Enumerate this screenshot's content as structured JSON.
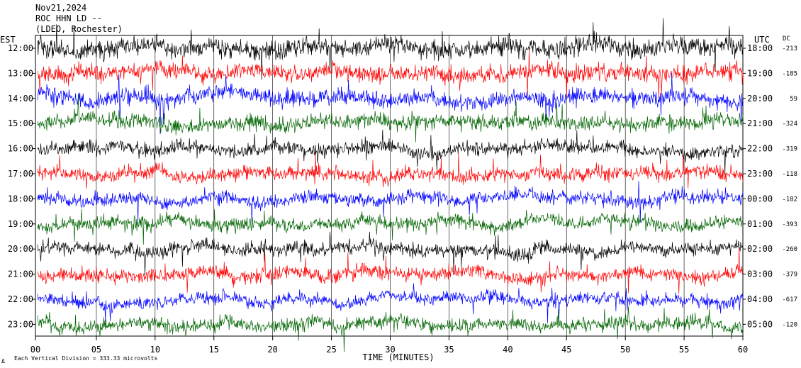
{
  "header": {
    "date": "Nov21,2024",
    "station": "ROC HHN LD --",
    "location": "(LDEO, Rochester)"
  },
  "footer": {
    "scale_note": "Each Vertical Division =  333.33 microvolts",
    "logo_mark": "Δ"
  },
  "colors": {
    "black": "#000000",
    "red": "#ff0000",
    "blue": "#0000ff",
    "green": "#006400"
  },
  "chart_data": {
    "type": "line",
    "xlabel": "TIME (MINUTES)",
    "xlim": [
      0,
      60
    ],
    "x_ticks": [
      "00",
      "05",
      "10",
      "15",
      "20",
      "25",
      "30",
      "35",
      "40",
      "45",
      "50",
      "55",
      "60"
    ],
    "left_axis_title": "EST",
    "right_axis_title": "UTC",
    "dc_title": "DC",
    "rows": [
      {
        "est": "12:00",
        "utc": "18:00",
        "dc": "-213",
        "color": "black",
        "amplitude": 1.2
      },
      {
        "est": "13:00",
        "utc": "19:00",
        "dc": "-185",
        "color": "red",
        "amplitude": 1.1
      },
      {
        "est": "14:00",
        "utc": "20:00",
        "dc": "59",
        "color": "blue",
        "amplitude": 1.1
      },
      {
        "est": "15:00",
        "utc": "21:00",
        "dc": "-324",
        "color": "green",
        "amplitude": 1.0
      },
      {
        "est": "16:00",
        "utc": "22:00",
        "dc": "-319",
        "color": "black",
        "amplitude": 0.9
      },
      {
        "est": "17:00",
        "utc": "23:00",
        "dc": "-118",
        "color": "red",
        "amplitude": 0.9
      },
      {
        "est": "18:00",
        "utc": "00:00",
        "dc": "-182",
        "color": "blue",
        "amplitude": 0.9
      },
      {
        "est": "19:00",
        "utc": "01:00",
        "dc": "-393",
        "color": "green",
        "amplitude": 0.9
      },
      {
        "est": "20:00",
        "utc": "02:00",
        "dc": "-260",
        "color": "black",
        "amplitude": 0.9
      },
      {
        "est": "21:00",
        "utc": "03:00",
        "dc": "-379",
        "color": "red",
        "amplitude": 0.9
      },
      {
        "est": "22:00",
        "utc": "04:00",
        "dc": "-617",
        "color": "blue",
        "amplitude": 0.8
      },
      {
        "est": "23:00",
        "utc": "05:00",
        "dc": "-120",
        "color": "green",
        "amplitude": 0.9
      }
    ]
  }
}
